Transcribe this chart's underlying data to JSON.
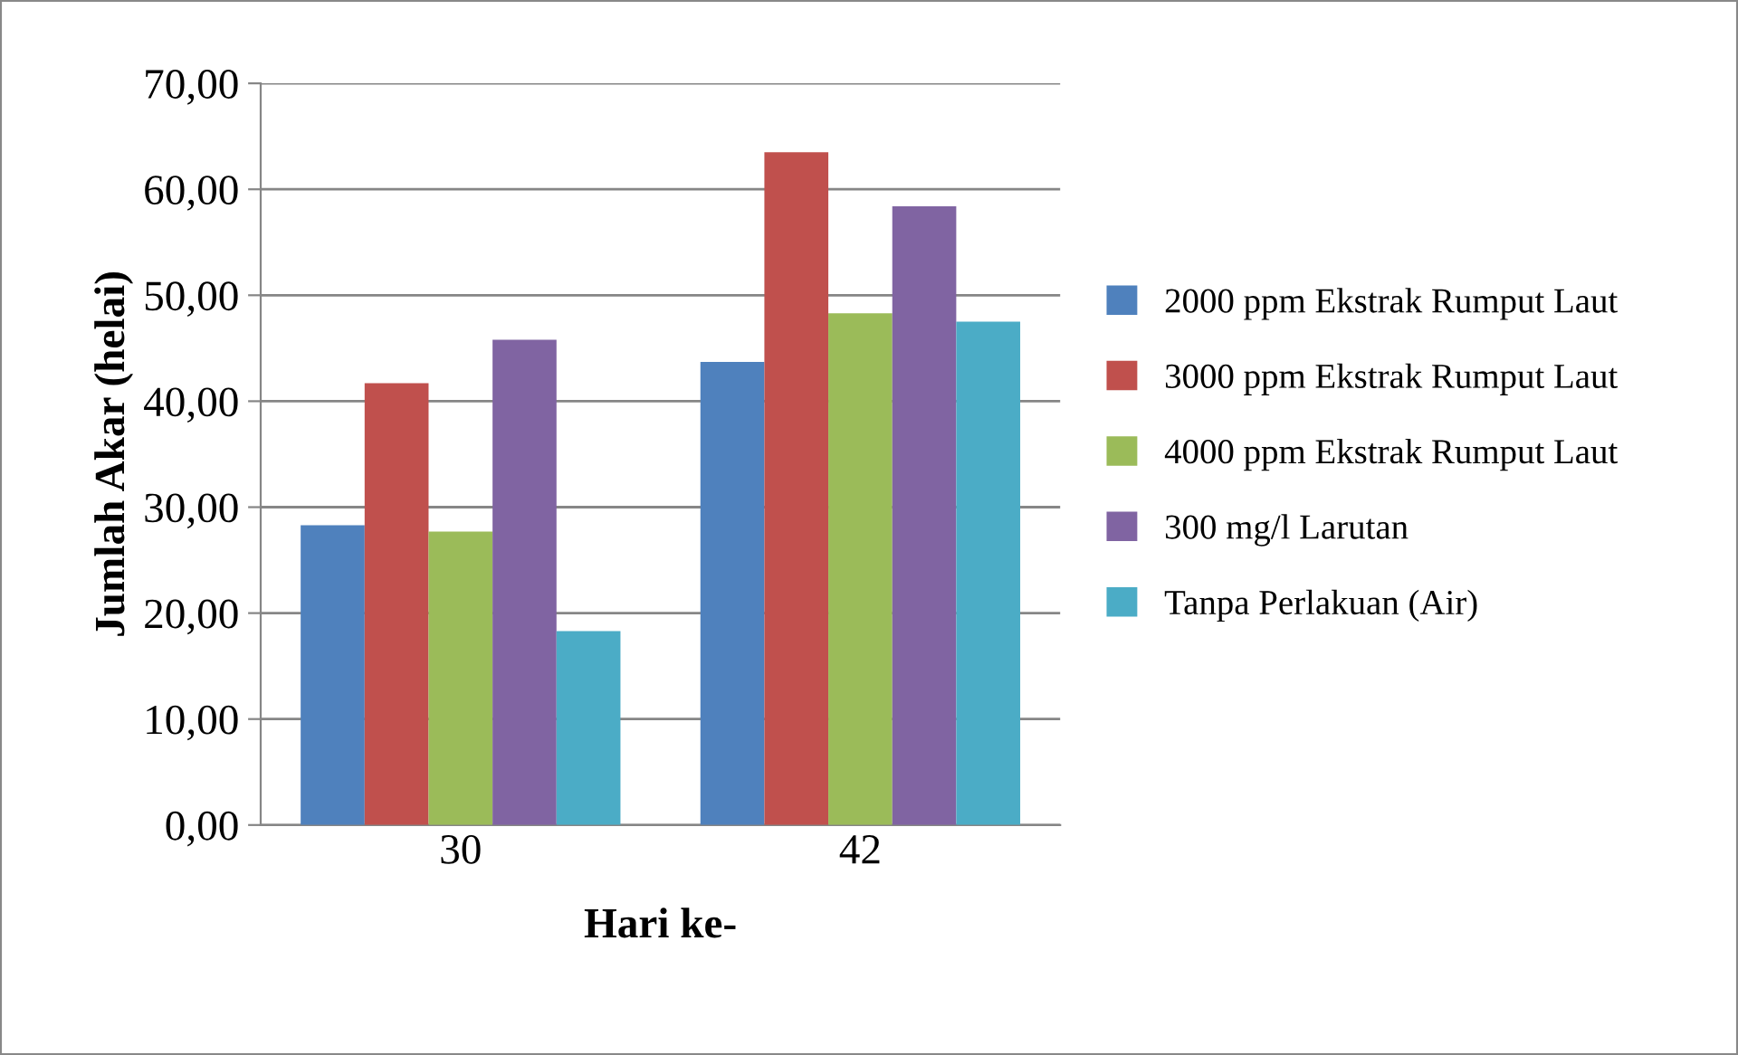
{
  "chart_data": {
    "type": "bar",
    "xlabel": "Hari ke-",
    "ylabel": "Jumlah Akar (helai)",
    "categories": [
      "30",
      "42"
    ],
    "series": [
      {
        "name": "2000 ppm Ekstrak Rumput Laut",
        "color": "#4f81bd",
        "values": [
          28.3,
          43.7
        ]
      },
      {
        "name": "3000 ppm Ekstrak Rumput Laut",
        "color": "#c0504d",
        "values": [
          41.7,
          63.5
        ]
      },
      {
        "name": "4000 ppm Ekstrak Rumput Laut",
        "color": "#9bbb59",
        "values": [
          27.7,
          48.3
        ]
      },
      {
        "name": "300 mg/l Larutan",
        "color": "#8064a2",
        "values": [
          45.8,
          58.4
        ]
      },
      {
        "name": "Tanpa Perlakuan (Air)",
        "color": "#4bacc6",
        "values": [
          18.3,
          47.5
        ]
      }
    ],
    "ylim": [
      0,
      70
    ],
    "yticks": [
      {
        "value": 0,
        "label": "0,00"
      },
      {
        "value": 10,
        "label": "10,00"
      },
      {
        "value": 20,
        "label": "20,00"
      },
      {
        "value": 30,
        "label": "30,00"
      },
      {
        "value": 40,
        "label": "40,00"
      },
      {
        "value": 50,
        "label": "50,00"
      },
      {
        "value": 60,
        "label": "60,00"
      },
      {
        "value": 70,
        "label": "70,00"
      }
    ],
    "grid": "y",
    "legend": "right"
  }
}
